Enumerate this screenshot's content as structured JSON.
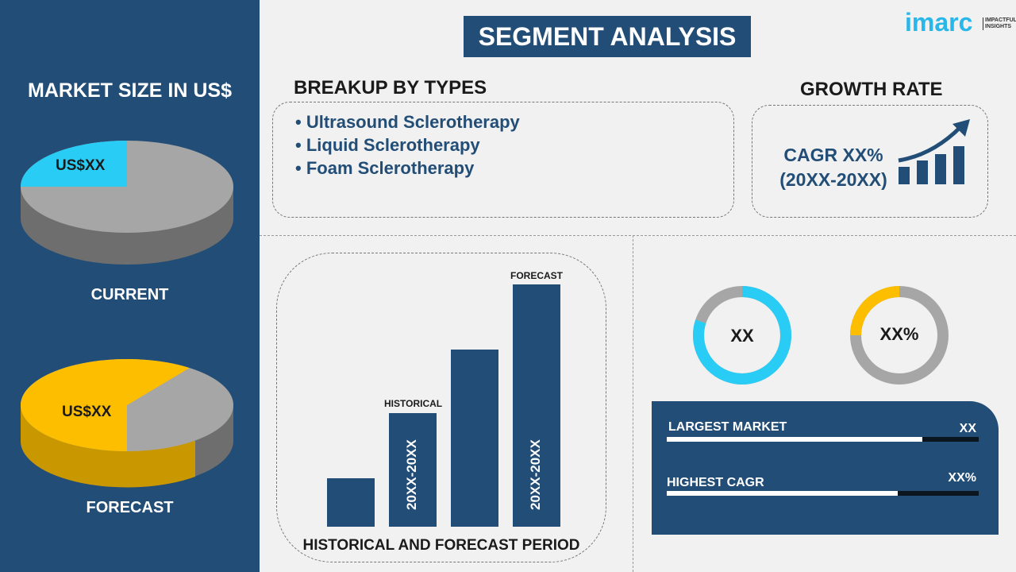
{
  "title": "SEGMENT ANALYSIS",
  "logo": {
    "name": "imarc",
    "tagline": "IMPACTFUL INSIGHTS"
  },
  "colors": {
    "navy": "#224d76",
    "cyan": "#29ccf5",
    "yellow": "#fdbe00",
    "gray": "#a6a6a6"
  },
  "left": {
    "heading": "MARKET SIZE IN US$",
    "current": {
      "label": "CURRENT",
      "value": "US$XX",
      "share": 0.25
    },
    "forecast": {
      "label": "FORECAST",
      "value": "US$XX",
      "share": 0.6
    }
  },
  "types": {
    "heading": "BREAKUP BY TYPES",
    "items": [
      "Ultrasound Sclerotherapy",
      "Liquid Sclerotherapy",
      "Foam Sclerotherapy"
    ]
  },
  "growth": {
    "heading": "GROWTH RATE",
    "line1": "CAGR XX%",
    "line2": "(20XX-20XX)"
  },
  "bars": {
    "caption": "HISTORICAL AND FORECAST PERIOD",
    "historical": "HISTORICAL",
    "forecast": "FORECAST",
    "period_label": "20XX-20XX",
    "relative_heights": [
      0.2,
      0.47,
      0.73,
      1.0
    ]
  },
  "donuts": [
    {
      "value": "XX",
      "fraction": 0.8,
      "color": "#29ccf5"
    },
    {
      "value": "XX%",
      "fraction": 0.25,
      "color": "#fdbe00"
    }
  ],
  "stats": [
    {
      "label": "LARGEST MARKET",
      "value": "XX",
      "fraction": 0.82
    },
    {
      "label": "HIGHEST CAGR",
      "value": "XX%",
      "fraction": 0.74
    }
  ]
}
